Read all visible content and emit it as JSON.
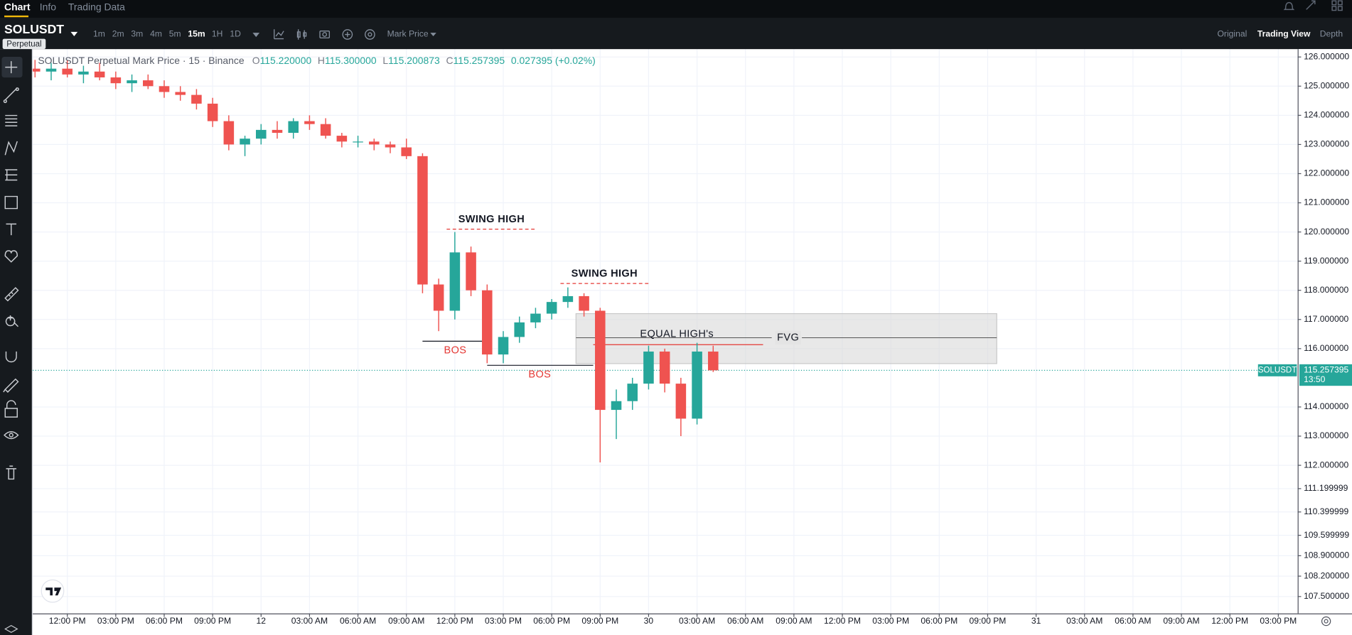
{
  "tabs": [
    "Chart",
    "Info",
    "Trading Data"
  ],
  "symbol": "SOLUSDT",
  "market_badge": "Perpetual",
  "intervals": [
    "1m",
    "2m",
    "3m",
    "4m",
    "5m",
    "15m",
    "1H",
    "1D"
  ],
  "active_interval": "15m",
  "price_type": "Mark Price",
  "views": [
    "Original",
    "Trading View",
    "Depth"
  ],
  "active_view": "Trading View",
  "legend": {
    "title": "SOLUSDT Perpetual Mark Price · 15 · Binance",
    "ohlc": [
      {
        "label": "O",
        "value": "115.220000"
      },
      {
        "label": "H",
        "value": "115.300000"
      },
      {
        "label": "L",
        "value": "115.200873"
      },
      {
        "label": "C",
        "value": "115.257395"
      }
    ],
    "change": "0.027395 (+0.02%)"
  },
  "annotations": [
    "SWING HIGH",
    "SWING HIGH",
    "BOS",
    "BOS",
    "EQUAL HIGH's",
    "FVG"
  ],
  "last_price": {
    "symbol": "SOLUSDT",
    "value": 115.257395,
    "countdown": "13:50"
  },
  "chart_data": {
    "type": "candlestick",
    "up_color": "#26a69a",
    "down_color": "#ef5350",
    "grid": true,
    "x": [
      -2,
      -1,
      0,
      1,
      2,
      3,
      4,
      5,
      6,
      7,
      8,
      9,
      10,
      11,
      12,
      13,
      14,
      15,
      16,
      17,
      18,
      19,
      20,
      21,
      22,
      23,
      24,
      25,
      26,
      27,
      28,
      29,
      30,
      31,
      32,
      33,
      34,
      35,
      36,
      37,
      38,
      39,
      40
    ],
    "open": [
      125.6,
      125.5,
      125.6,
      125.4,
      125.5,
      125.3,
      125.1,
      125.2,
      125.0,
      124.8,
      124.7,
      124.4,
      123.8,
      123.0,
      123.2,
      123.5,
      123.4,
      123.8,
      123.7,
      123.3,
      123.1,
      123.1,
      123.0,
      122.9,
      122.6,
      118.2,
      117.3,
      119.3,
      118.0,
      115.8,
      116.4,
      116.9,
      117.2,
      117.6,
      117.8,
      117.3,
      113.9,
      114.2,
      114.8,
      115.9,
      114.8,
      113.6,
      115.9
    ],
    "high": [
      125.9,
      125.8,
      125.9,
      125.7,
      125.8,
      125.5,
      125.4,
      125.4,
      125.2,
      125.0,
      124.9,
      124.6,
      124.0,
      123.3,
      123.7,
      123.8,
      123.9,
      124.0,
      123.9,
      123.4,
      123.3,
      123.2,
      123.1,
      123.2,
      122.7,
      118.4,
      120.0,
      119.5,
      118.2,
      116.6,
      117.1,
      117.4,
      117.7,
      118.1,
      117.9,
      117.4,
      114.6,
      115.0,
      116.1,
      116.0,
      115.0,
      116.2,
      116.1
    ],
    "low": [
      125.3,
      125.2,
      125.3,
      125.1,
      125.2,
      124.9,
      124.8,
      124.9,
      124.6,
      124.5,
      124.2,
      123.6,
      122.8,
      122.6,
      123.0,
      123.2,
      123.2,
      123.5,
      123.2,
      122.9,
      122.9,
      122.8,
      122.7,
      122.5,
      117.9,
      116.6,
      117.0,
      117.8,
      115.5,
      115.5,
      116.2,
      116.7,
      117.0,
      117.4,
      117.1,
      112.1,
      112.9,
      113.9,
      114.6,
      114.5,
      113.0,
      113.4,
      115.2
    ],
    "close": [
      125.5,
      125.6,
      125.4,
      125.5,
      125.3,
      125.1,
      125.2,
      125.0,
      124.8,
      124.7,
      124.4,
      123.8,
      123.0,
      123.2,
      123.5,
      123.4,
      123.8,
      123.7,
      123.3,
      123.1,
      123.1,
      123.0,
      122.9,
      122.6,
      118.2,
      117.3,
      119.3,
      118.0,
      115.8,
      116.4,
      116.9,
      117.2,
      117.6,
      117.8,
      117.3,
      113.9,
      114.2,
      114.8,
      115.9,
      114.8,
      113.6,
      115.9,
      115.257395
    ],
    "xlim": [
      -2.14,
      76.2
    ],
    "ylim": [
      106.92,
      126.27
    ],
    "xticks": [
      {
        "value": 0,
        "label": "12:00 PM"
      },
      {
        "value": 3,
        "label": "03:00 PM"
      },
      {
        "value": 6,
        "label": "06:00 PM"
      },
      {
        "value": 9,
        "label": "09:00 PM"
      },
      12,
      {
        "value": 15,
        "label": "03:00 AM"
      },
      {
        "value": 18,
        "label": "06:00 AM"
      },
      {
        "value": 21,
        "label": "09:00 AM"
      },
      {
        "value": 24,
        "label": "12:00 PM"
      },
      {
        "value": 27,
        "label": "03:00 PM"
      },
      {
        "value": 30,
        "label": "06:00 PM"
      },
      {
        "value": 33,
        "label": "09:00 PM"
      },
      {
        "value": 36,
        "label": "30"
      },
      {
        "value": 39,
        "label": "03:00 AM"
      },
      {
        "value": 42,
        "label": "06:00 AM"
      },
      {
        "value": 45,
        "label": "09:00 AM"
      },
      {
        "value": 48,
        "label": "12:00 PM"
      },
      {
        "value": 51,
        "label": "03:00 PM"
      },
      {
        "value": 54,
        "label": "06:00 PM"
      },
      {
        "value": 57,
        "label": "09:00 PM"
      },
      {
        "value": 60,
        "label": "31"
      },
      {
        "value": 63,
        "label": "03:00 AM"
      },
      {
        "value": 66,
        "label": "06:00 AM"
      },
      {
        "value": 69,
        "label": "09:00 AM"
      },
      {
        "value": 72,
        "label": "12:00 PM"
      },
      {
        "value": 75,
        "label": "03:00 PM"
      }
    ],
    "yticks": [
      {
        "value": 126,
        "label": "126.000000"
      },
      {
        "value": 125,
        "label": "125.000000"
      },
      {
        "value": 124,
        "label": "124.000000"
      },
      {
        "value": 123,
        "label": "123.000000"
      },
      {
        "value": 122,
        "label": "122.000000"
      },
      {
        "value": 121,
        "label": "121.000000"
      },
      {
        "value": 120,
        "label": "120.000000"
      },
      {
        "value": 119,
        "label": "119.000000"
      },
      {
        "value": 118,
        "label": "118.000000"
      },
      {
        "value": 117,
        "label": "117.000000"
      },
      {
        "value": 116,
        "label": "116.000000"
      },
      {
        "value": 114,
        "label": "114.000000"
      },
      {
        "value": 113,
        "label": "113.000000"
      },
      {
        "value": 112,
        "label": "112.000000"
      },
      111.199999,
      110.399999,
      109.599999,
      {
        "value": 108.9,
        "label": "108.900000"
      },
      {
        "value": 108.2,
        "label": "108.200000"
      },
      {
        "value": 107.5,
        "label": "107.500000"
      }
    ]
  }
}
